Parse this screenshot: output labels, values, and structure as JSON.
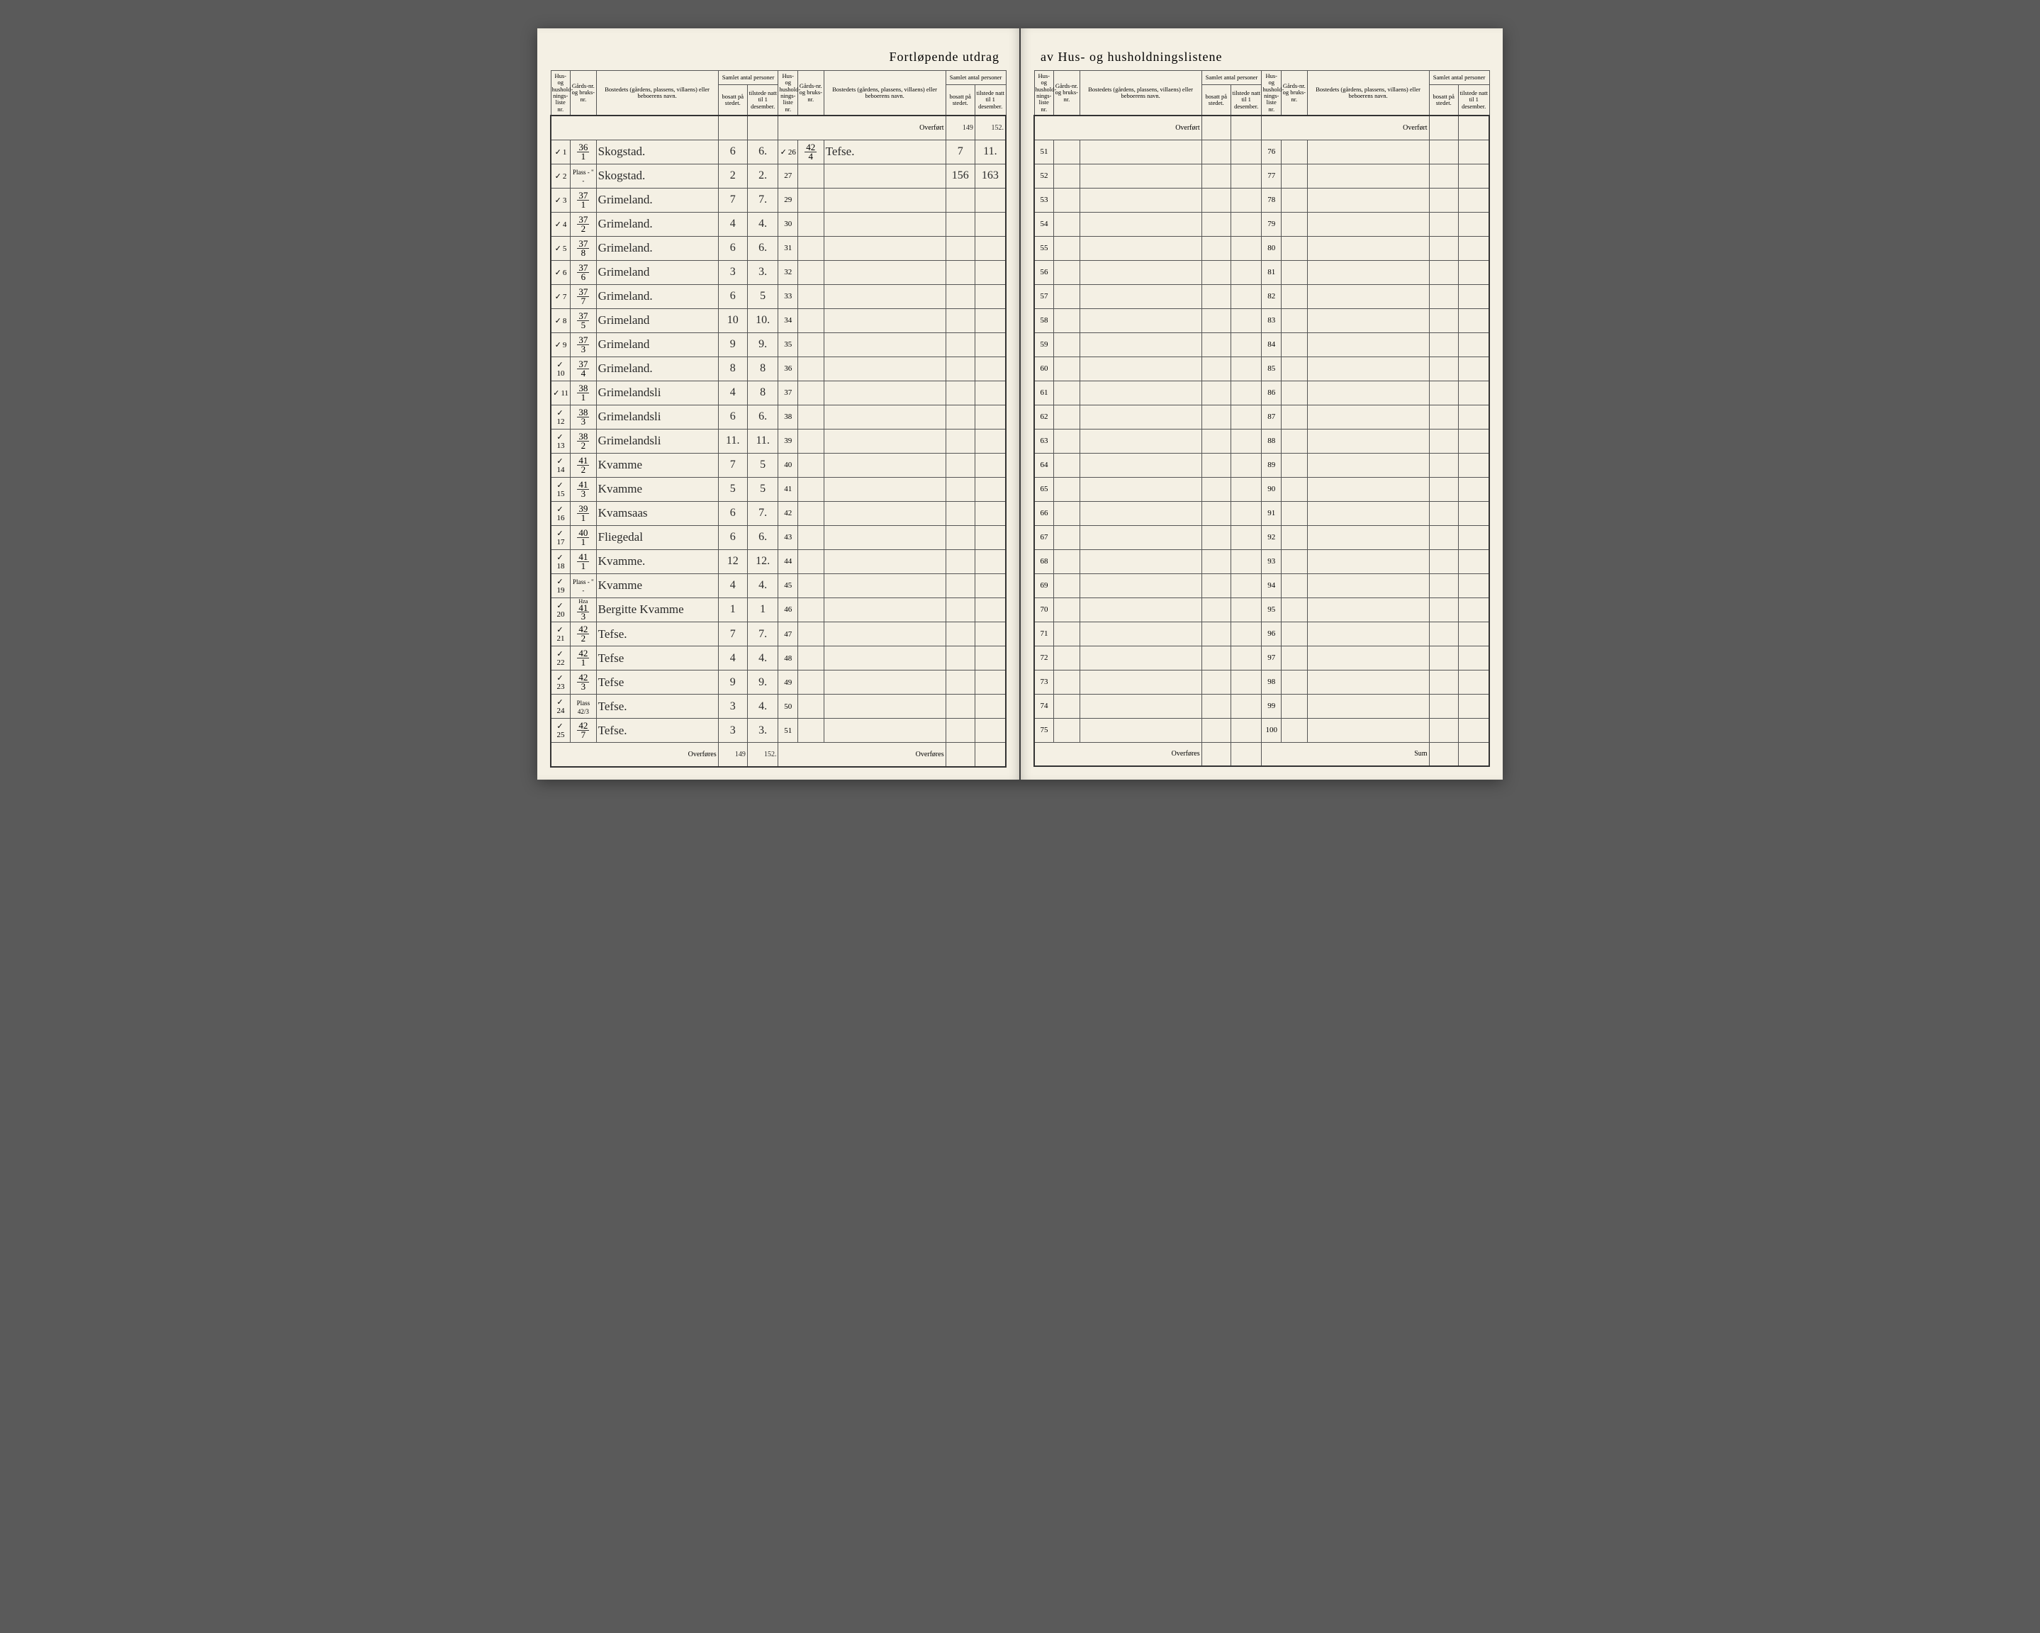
{
  "banner_left": "Fortløpende utdrag",
  "banner_right": "av Hus- og husholdningslistene",
  "headers": {
    "liste": "Hus- og hushold-nings-liste nr.",
    "gard": "Gårds-nr. og bruks-nr.",
    "bosted": "Bostedets (gårdens, plassens, villaens) eller beboerens navn.",
    "samlet": "Samlet antal personer",
    "bosatt": "bosatt på stedet.",
    "tilstede": "tilstede natt til 1 desember."
  },
  "overfort": "Overført",
  "overfores": "Overføres",
  "sum": "Sum",
  "left_page": {
    "col1": [
      {
        "n": "1",
        "g_num": "36",
        "g_den": "1",
        "name": "Skogstad.",
        "b": "6",
        "t": "6."
      },
      {
        "n": "2",
        "g_plain": "Plass - \" -",
        "name": "Skogstad.",
        "b": "2",
        "t": "2."
      },
      {
        "n": "3",
        "g_num": "37",
        "g_den": "1",
        "name": "Grimeland.",
        "b": "7",
        "t": "7."
      },
      {
        "n": "4",
        "g_num": "37",
        "g_den": "2",
        "name": "Grimeland.",
        "b": "4",
        "t": "4."
      },
      {
        "n": "5",
        "g_num": "37",
        "g_den": "8",
        "name": "Grimeland.",
        "b": "6",
        "t": "6."
      },
      {
        "n": "6",
        "g_num": "37",
        "g_den": "6",
        "name": "Grimeland",
        "b": "3",
        "t": "3."
      },
      {
        "n": "7",
        "g_num": "37",
        "g_den": "7",
        "name": "Grimeland.",
        "b": "6",
        "t": "5"
      },
      {
        "n": "8",
        "g_num": "37",
        "g_den": "5",
        "name": "Grimeland",
        "b": "10",
        "t": "10."
      },
      {
        "n": "9",
        "g_num": "37",
        "g_den": "3",
        "name": "Grimeland",
        "b": "9",
        "t": "9."
      },
      {
        "n": "10",
        "g_num": "37",
        "g_den": "4",
        "name": "Grimeland.",
        "b": "8",
        "t": "8"
      },
      {
        "n": "11",
        "g_num": "38",
        "g_den": "1",
        "name": "Grimelandsli",
        "b": "4",
        "t": "8"
      },
      {
        "n": "12",
        "g_num": "38",
        "g_den": "3",
        "name": "Grimelandsli",
        "b": "6",
        "t": "6."
      },
      {
        "n": "13",
        "g_num": "38",
        "g_den": "2",
        "name": "Grimelandsli",
        "b": "11.",
        "t": "11."
      },
      {
        "n": "14",
        "g_num": "41",
        "g_den": "2",
        "name": "Kvamme",
        "b": "7",
        "t": "5"
      },
      {
        "n": "15",
        "g_num": "41",
        "g_den": "3",
        "name": "Kvamme",
        "b": "5",
        "t": "5"
      },
      {
        "n": "16",
        "g_num": "39",
        "g_den": "1",
        "name": "Kvamsaas",
        "b": "6",
        "t": "7."
      },
      {
        "n": "17",
        "g_num": "40",
        "g_den": "1",
        "name": "Fliegedal",
        "b": "6",
        "t": "6."
      },
      {
        "n": "18",
        "g_num": "41",
        "g_den": "1",
        "name": "Kvamme.",
        "b": "12",
        "t": "12."
      },
      {
        "n": "19",
        "g_plain": "Plass - \" -",
        "name": "Kvamme",
        "b": "4",
        "t": "4."
      },
      {
        "n": "20",
        "g_num": "41",
        "g_den": "3",
        "g_prefix": "Hza",
        "name": "Bergitte Kvamme",
        "b": "1",
        "t": "1"
      },
      {
        "n": "21",
        "g_num": "42",
        "g_den": "2",
        "name": "Tefse.",
        "b": "7",
        "t": "7."
      },
      {
        "n": "22",
        "g_num": "42",
        "g_den": "1",
        "name": "Tefse",
        "b": "4",
        "t": "4."
      },
      {
        "n": "23",
        "g_num": "42",
        "g_den": "3",
        "name": "Tefse",
        "b": "9",
        "t": "9."
      },
      {
        "n": "24",
        "g_plain": "Plass 42/3",
        "name": "Tefse.",
        "b": "3",
        "t": "4."
      },
      {
        "n": "25",
        "g_num": "42",
        "g_den": "7",
        "name": "Tefse.",
        "b": "3",
        "t": "3."
      }
    ],
    "col1_overfores": {
      "b": "149",
      "t": "152."
    },
    "col2_overfort": {
      "b": "149",
      "t": "152."
    },
    "col2": [
      {
        "n": "26",
        "g_num": "42",
        "g_den": "4",
        "name": "Tefse.",
        "b": "7",
        "t": "11."
      }
    ],
    "col2_sum": {
      "b": "156",
      "t": "163"
    },
    "col2_empty_start": 27,
    "col2_empty_end": 50
  },
  "right_page": {
    "col3_start": 51,
    "col3_end": 75,
    "col4_start": 76,
    "col4_end": 100
  },
  "colors": {
    "paper": "#f4f0e4",
    "ink": "#2a2a2a",
    "rule": "#555555",
    "page_bg": "#5a5a5a"
  }
}
